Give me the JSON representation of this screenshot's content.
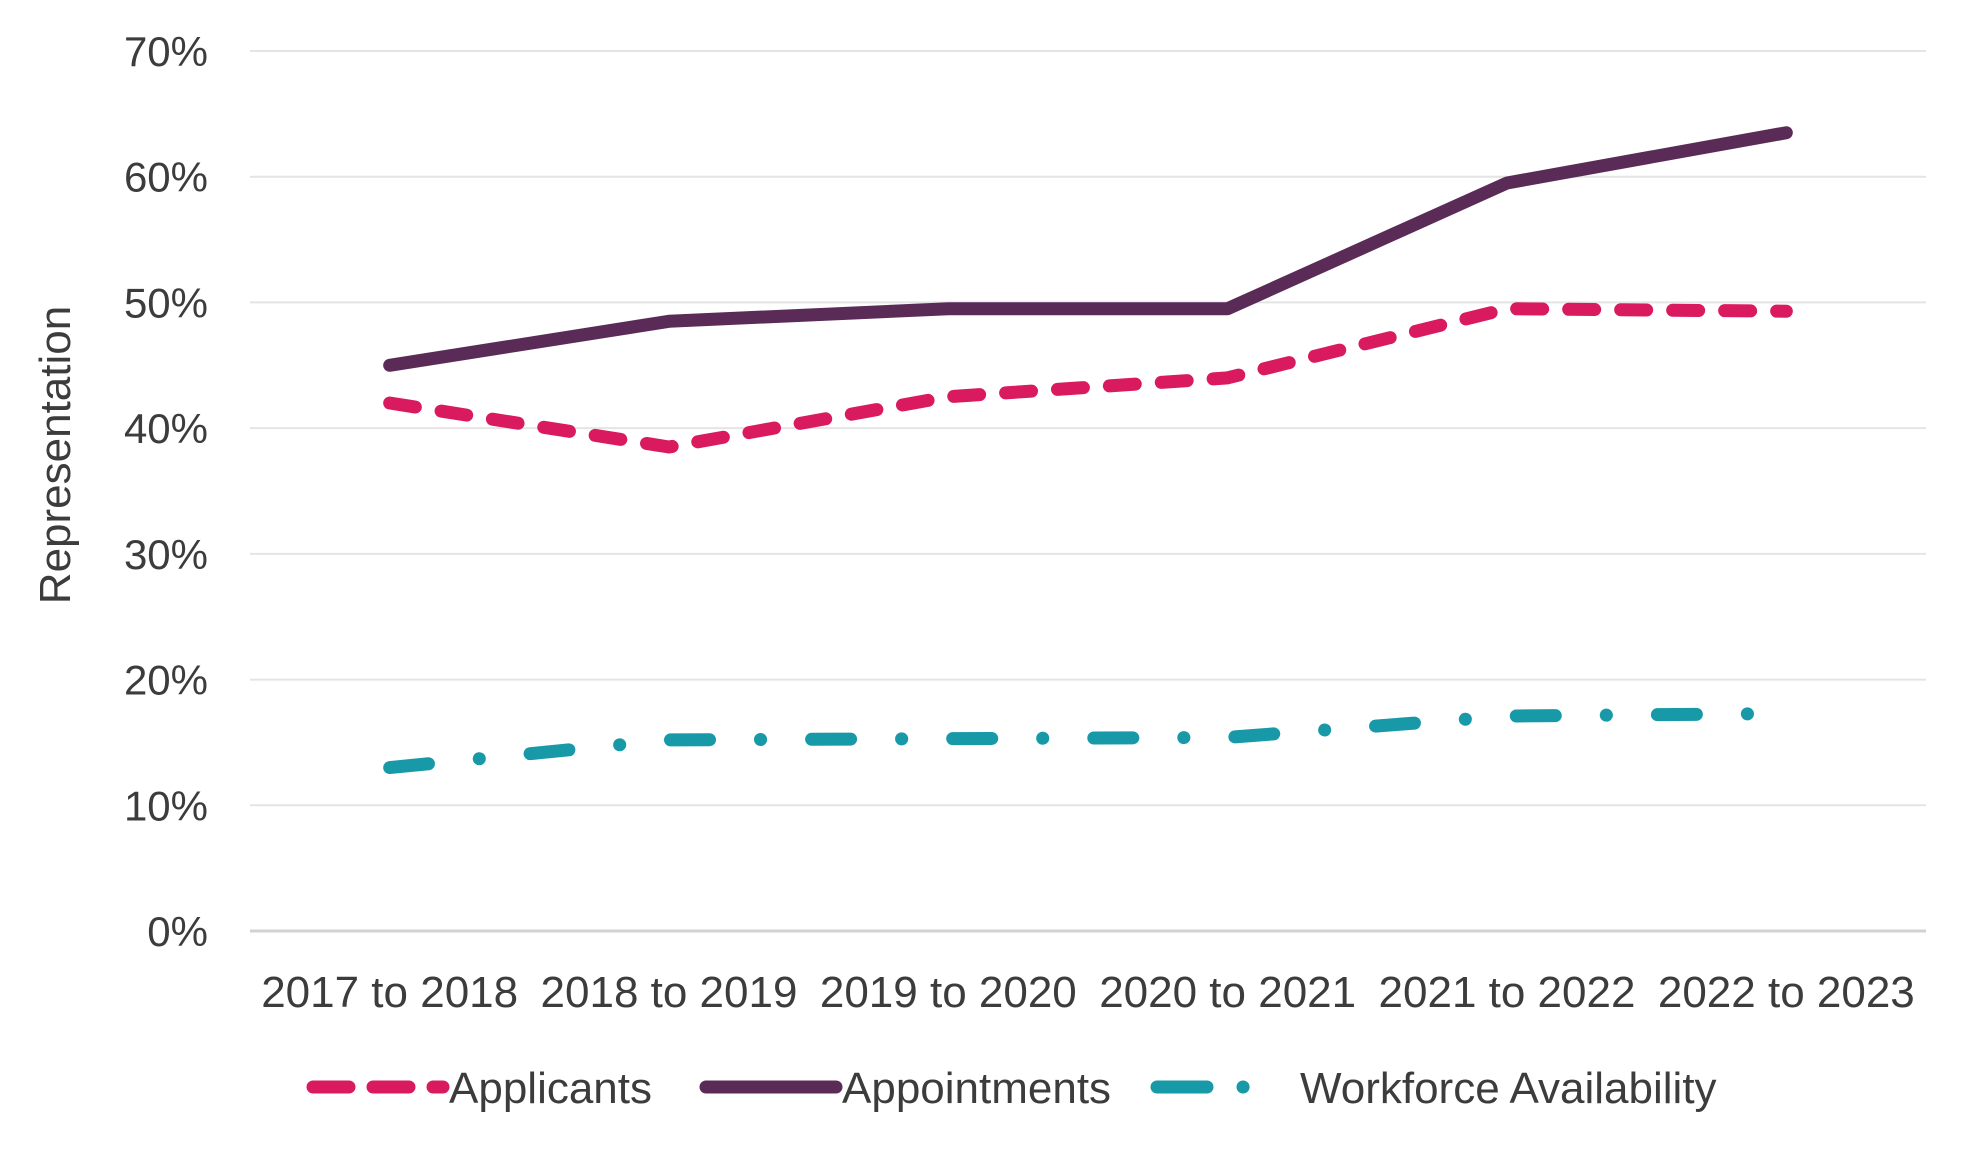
{
  "chart_data": {
    "type": "line",
    "title": "",
    "ylabel": "Representation",
    "xlabel": "",
    "ylim": [
      0,
      70
    ],
    "ytick_step": 10,
    "ytick_suffix": "%",
    "grid": true,
    "legend_position": "bottom",
    "categories": [
      "2017 to 2018",
      "2018 to 2019",
      "2019 to 2020",
      "2020 to 2021",
      "2021 to 2022",
      "2022 to 2023"
    ],
    "series": [
      {
        "name": "Applicants",
        "color": "#D91A5E",
        "line_style": "dashed",
        "values": [
          42.0,
          38.5,
          42.5,
          44.0,
          49.5,
          49.3
        ]
      },
      {
        "name": "Appointments",
        "color": "#5B2B58",
        "line_style": "solid",
        "values": [
          45.0,
          48.5,
          49.5,
          49.5,
          59.5,
          63.5
        ]
      },
      {
        "name": "Workforce Availability",
        "color": "#1899A8",
        "line_style": "dash-dot",
        "values": [
          13.0,
          15.2,
          15.3,
          15.4,
          17.1,
          17.3
        ]
      }
    ]
  }
}
